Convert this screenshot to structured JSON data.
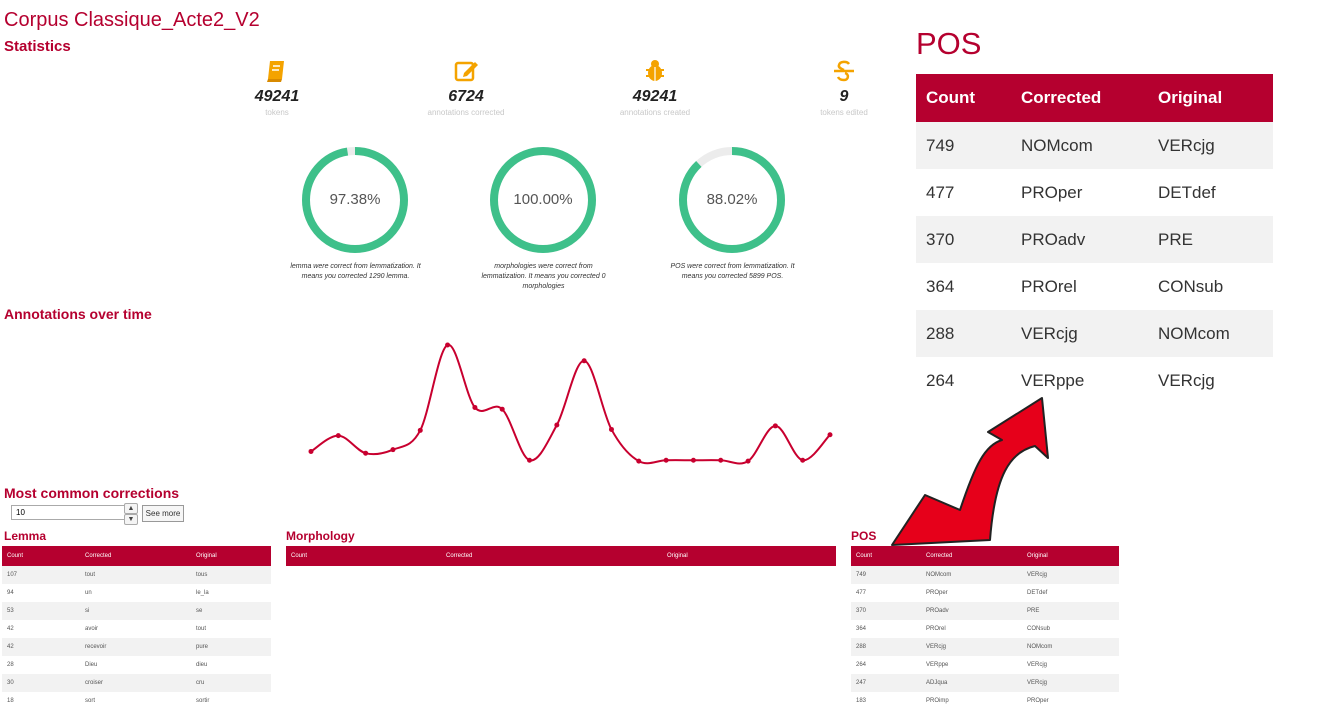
{
  "title": "Corpus Classique_Acte2_V2",
  "statistics_heading": "Statistics",
  "stats": [
    {
      "icon": "book-icon",
      "value": "49241",
      "label": "tokens"
    },
    {
      "icon": "edit-icon",
      "value": "6724",
      "label": "annotations corrected"
    },
    {
      "icon": "bug-icon",
      "value": "49241",
      "label": "annotations created"
    },
    {
      "icon": "strikethrough-icon",
      "value": "9",
      "label": "tokens edited"
    }
  ],
  "rings": [
    {
      "percent": "97.38%",
      "fraction": 0.9738,
      "caption": "lemma were correct from lemmatization. It means you corrected 1290 lemma."
    },
    {
      "percent": "100.00%",
      "fraction": 1.0,
      "caption": "morphologies were correct from lemmatization. It means you corrected 0 morphologies"
    },
    {
      "percent": "88.02%",
      "fraction": 0.8802,
      "caption": "POS were correct from lemmatization. It means you corrected 5899 POS."
    }
  ],
  "accent_color": "#b5002f",
  "ring_color": "#3ec08a",
  "annotations_heading": "Annotations over time",
  "chart_data": {
    "type": "line",
    "y": [
      120,
      300,
      100,
      140,
      360,
      1330,
      620,
      600,
      20,
      420,
      1150,
      370,
      10,
      20,
      20,
      20,
      10,
      410,
      20,
      310
    ],
    "ylim": [
      0,
      1500
    ],
    "color": "#c8002f"
  },
  "most_common_heading": "Most common corrections",
  "limit_value": "10",
  "see_more_label": "See more",
  "lemma": {
    "heading": "Lemma",
    "columns": [
      "Count",
      "Corrected",
      "Original"
    ],
    "rows": [
      [
        "107",
        "tout",
        "tous"
      ],
      [
        "94",
        "un",
        "le_la"
      ],
      [
        "53",
        "si",
        "se"
      ],
      [
        "42",
        "avoir",
        "tout"
      ],
      [
        "42",
        "recevoir",
        "pure"
      ],
      [
        "28",
        "Dieu",
        "dieu"
      ],
      [
        "30",
        "croiser",
        "cru"
      ],
      [
        "18",
        "sort",
        "sortir"
      ]
    ]
  },
  "morphology": {
    "heading": "Morphology",
    "columns": [
      "Count",
      "Corrected",
      "Original"
    ]
  },
  "pos_small": {
    "heading": "POS",
    "columns": [
      "Count",
      "Corrected",
      "Original"
    ],
    "rows": [
      [
        "749",
        "NOMcom",
        "VERcjg"
      ],
      [
        "477",
        "PROper",
        "DETdef"
      ],
      [
        "370",
        "PROadv",
        "PRE"
      ],
      [
        "364",
        "PROrel",
        "CONsub"
      ],
      [
        "288",
        "VERcjg",
        "NOMcom"
      ],
      [
        "264",
        "VERppe",
        "VERcjg"
      ],
      [
        "247",
        "ADJqua",
        "VERcjg"
      ],
      [
        "183",
        "PROimp",
        "PROper"
      ]
    ]
  },
  "pos_big": {
    "heading": "POS",
    "columns": [
      "Count",
      "Corrected",
      "Original"
    ],
    "rows": [
      [
        "749",
        "NOMcom",
        "VERcjg"
      ],
      [
        "477",
        "PROper",
        "DETdef"
      ],
      [
        "370",
        "PROadv",
        "PRE"
      ],
      [
        "364",
        "PROrel",
        "CONsub"
      ],
      [
        "288",
        "VERcjg",
        "NOMcom"
      ],
      [
        "264",
        "VERppe",
        "VERcjg"
      ]
    ]
  }
}
